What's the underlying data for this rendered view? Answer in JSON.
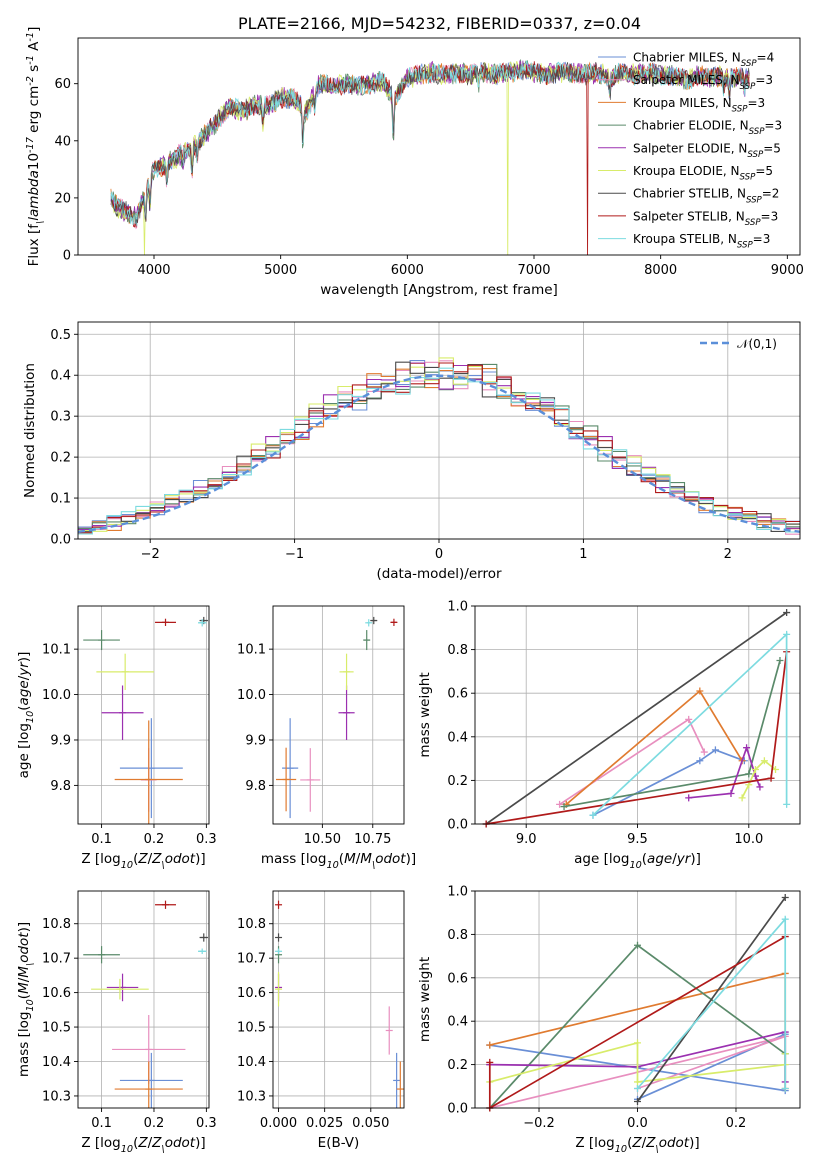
{
  "figure_title": "PLATE=2166, MJD=54232, FIBERID=0337, z=0.04",
  "series_names": [
    "Chabrier MILES, N$_{SSP}$=4",
    "Salpeter MILES, N$_{SSP}$=3",
    "Kroupa MILES, N$_{SSP}$=3",
    "Chabrier ELODIE, N$_{SSP}$=3",
    "Salpeter ELODIE, N$_{SSP}$=5",
    "Kroupa ELODIE, N$_{SSP}$=5",
    "Chabrier STELIB, N$_{SSP}$=2",
    "Salpeter STELIB, N$_{SSP}$=3",
    "Kroupa STELIB, N$_{SSP}$=3"
  ],
  "series_colors": [
    "#6a8fd6",
    "#e88fbf",
    "#e07b30",
    "#5a8a6a",
    "#9b30b0",
    "#d8ec6a",
    "#4a4a4a",
    "#b01a1a",
    "#7ddbe0"
  ],
  "chart_data": [
    {
      "type": "line",
      "title": "PLATE=2166, MJD=54232, FIBERID=0337, z=0.04",
      "xlabel": "wavelength [Angstrom, rest frame]",
      "ylabel": "Flux [f$_\\lambda$10$^{-17}$ erg cm$^{-2}$ s$^{-1}$ A$^{-1}$]",
      "xlim": [
        3400,
        9100
      ],
      "ylim": [
        0,
        76
      ],
      "xticks": [
        4000,
        5000,
        6000,
        7000,
        8000,
        9000
      ],
      "yticks": [
        0,
        20,
        40,
        60
      ],
      "grid": false,
      "legend_position": "right",
      "spectrum_anchors": [
        [
          3660,
          20
        ],
        [
          3700,
          17
        ],
        [
          3780,
          15
        ],
        [
          3860,
          13
        ],
        [
          3930,
          22
        ],
        [
          4000,
          30
        ],
        [
          4100,
          32
        ],
        [
          4200,
          35
        ],
        [
          4300,
          38
        ],
        [
          4400,
          42
        ],
        [
          4500,
          47
        ],
        [
          4600,
          52
        ],
        [
          4700,
          50
        ],
        [
          4800,
          53
        ],
        [
          4900,
          52
        ],
        [
          5000,
          55
        ],
        [
          5100,
          55
        ],
        [
          5200,
          50
        ],
        [
          5300,
          60
        ],
        [
          5400,
          59
        ],
        [
          5500,
          60
        ],
        [
          5600,
          59
        ],
        [
          5700,
          60
        ],
        [
          5800,
          61
        ],
        [
          5900,
          55
        ],
        [
          6000,
          62
        ],
        [
          6100,
          63
        ],
        [
          6200,
          64
        ],
        [
          6300,
          63
        ],
        [
          6400,
          64
        ],
        [
          6500,
          63
        ],
        [
          6600,
          64
        ],
        [
          6700,
          63
        ],
        [
          6800,
          64
        ],
        [
          6900,
          65
        ],
        [
          7000,
          64
        ],
        [
          7100,
          63
        ],
        [
          7200,
          64
        ],
        [
          7300,
          64
        ],
        [
          7400,
          63
        ],
        [
          7500,
          64
        ],
        [
          7600,
          62
        ],
        [
          7700,
          64
        ],
        [
          7800,
          63
        ],
        [
          7900,
          64
        ],
        [
          8000,
          63
        ],
        [
          8100,
          63
        ],
        [
          8200,
          61
        ],
        [
          8300,
          63
        ],
        [
          8400,
          62
        ],
        [
          8500,
          63
        ],
        [
          8600,
          62
        ],
        [
          8700,
          62
        ]
      ],
      "absorption_features": [
        [
          3933,
          10
        ],
        [
          3968,
          9
        ],
        [
          4101,
          5
        ],
        [
          4227,
          3
        ],
        [
          4300,
          8
        ],
        [
          4340,
          5
        ],
        [
          4861,
          6
        ],
        [
          5175,
          12
        ],
        [
          5270,
          5
        ],
        [
          5890,
          14
        ],
        [
          6563,
          4
        ],
        [
          7600,
          5
        ],
        [
          8498,
          4
        ],
        [
          8542,
          5
        ],
        [
          8662,
          4
        ]
      ],
      "dropouts": [
        {
          "series": 5,
          "wavelength": 3925
        },
        {
          "series": 5,
          "wavelength": 6790
        },
        {
          "series": 7,
          "wavelength": 7420
        }
      ]
    },
    {
      "type": "step",
      "xlabel": "(data-model)/error",
      "ylabel": "Normed distribution",
      "xlim": [
        -2.5,
        2.5
      ],
      "ylim": [
        0,
        0.53
      ],
      "xticks": [
        -2,
        -1,
        0,
        1,
        2
      ],
      "yticks": [
        0.0,
        0.1,
        0.2,
        0.3,
        0.4,
        0.5
      ],
      "grid": true,
      "legend_position": "upper right",
      "legend_label": "$\\mathcal{N}(0,1)$",
      "reference_curve": "normal density, mean 0, standard deviation 1",
      "bin_width": 0.1,
      "bin_start": -2.5
    },
    {
      "type": "scatter",
      "xlabel": "Z [log$_{10}$($Z/Z_\\odot$)]",
      "ylabel": "age  [log$_{10}$($age/yr$)]",
      "xlim": [
        0.055,
        0.305
      ],
      "ylim": [
        9.715,
        10.195
      ],
      "xticks": [
        0.1,
        0.2,
        0.3
      ],
      "yticks": [
        9.8,
        9.9,
        10.0,
        10.1
      ],
      "grid": true,
      "points": [
        {
          "x": 0.195,
          "y": 9.838,
          "xerr": 0.06,
          "yerr": 0.11
        },
        {
          "x": 0.19,
          "y": 9.812,
          "xerr": 0.015,
          "yerr": 0.07
        },
        {
          "x": 0.19,
          "y": 9.813,
          "xerr": 0.065,
          "yerr": 0.13
        },
        {
          "x": 0.1,
          "y": 10.12,
          "xerr": 0.035,
          "yerr": 0.022
        },
        {
          "x": 0.14,
          "y": 9.96,
          "xerr": 0.04,
          "yerr": 0.06
        },
        {
          "x": 0.145,
          "y": 10.05,
          "xerr": 0.055,
          "yerr": 0.04
        },
        {
          "x": 0.295,
          "y": 10.163,
          "xerr": 0.008,
          "yerr": 0.008
        },
        {
          "x": 0.222,
          "y": 10.159,
          "xerr": 0.02,
          "yerr": 0.008
        },
        {
          "x": 0.292,
          "y": 10.158,
          "xerr": 0.008,
          "yerr": 0.008
        }
      ]
    },
    {
      "type": "scatter",
      "xlabel": "mass [log$_{10}$($M/M_\\odot$)]",
      "ylabel": "",
      "xlim": [
        10.255,
        10.905
      ],
      "ylim": [
        9.715,
        10.195
      ],
      "xticks": [
        10.5,
        10.75
      ],
      "yticks": [
        9.8,
        9.9,
        10.0,
        10.1
      ],
      "grid": true,
      "points": [
        {
          "x": 10.34,
          "y": 9.838,
          "xerr": 0.04,
          "yerr": 0.11
        },
        {
          "x": 10.44,
          "y": 9.812,
          "xerr": 0.05,
          "yerr": 0.07
        },
        {
          "x": 10.32,
          "y": 9.813,
          "xerr": 0.05,
          "yerr": 0.07
        },
        {
          "x": 10.72,
          "y": 10.12,
          "xerr": 0.015,
          "yerr": 0.022
        },
        {
          "x": 10.62,
          "y": 9.96,
          "xerr": 0.04,
          "yerr": 0.06
        },
        {
          "x": 10.62,
          "y": 10.05,
          "xerr": 0.035,
          "yerr": 0.04
        },
        {
          "x": 10.755,
          "y": 10.163,
          "xerr": 0.015,
          "yerr": 0.008
        },
        {
          "x": 10.855,
          "y": 10.159,
          "xerr": 0.015,
          "yerr": 0.008
        },
        {
          "x": 10.73,
          "y": 10.158,
          "xerr": 0.008,
          "yerr": 0.008
        }
      ]
    },
    {
      "type": "line",
      "xlabel": "age  [log$_{10}$($age/yr$)]",
      "ylabel": "mass weight",
      "xlim": [
        8.77,
        10.23
      ],
      "ylim": [
        0,
        1
      ],
      "xticks": [
        9.0,
        9.5,
        10.0
      ],
      "yticks": [
        0.0,
        0.2,
        0.4,
        0.6,
        0.8,
        1.0
      ],
      "grid": true,
      "series": [
        {
          "x": [
            9.3,
            9.78,
            9.85,
            9.98
          ],
          "y": [
            0.04,
            0.29,
            0.34,
            0.29
          ]
        },
        {
          "x": [
            9.15,
            9.73,
            9.8
          ],
          "y": [
            0.09,
            0.48,
            0.33
          ]
        },
        {
          "x": [
            9.18,
            9.78,
            9.97
          ],
          "y": [
            0.09,
            0.61,
            0.29
          ]
        },
        {
          "x": [
            9.17,
            10.0,
            10.14
          ],
          "y": [
            0.08,
            0.23,
            0.75
          ]
        },
        {
          "x": [
            9.73,
            9.92,
            9.99,
            10.03,
            10.05
          ],
          "y": [
            0.12,
            0.14,
            0.35,
            0.22,
            0.17
          ]
        },
        {
          "x": [
            9.97,
            10.0,
            10.03,
            10.07,
            10.12
          ],
          "y": [
            0.12,
            0.18,
            0.25,
            0.29,
            0.25
          ]
        },
        {
          "x": [
            8.82,
            10.17
          ],
          "y": [
            0.0,
            0.97
          ]
        },
        {
          "x": [
            8.82,
            10.1,
            10.17
          ],
          "y": [
            0.0,
            0.21,
            0.79
          ]
        },
        {
          "x": [
            9.3,
            10.17,
            10.17
          ],
          "y": [
            0.04,
            0.87,
            0.09
          ]
        }
      ]
    },
    {
      "type": "scatter",
      "xlabel": "Z [log$_{10}$($Z/Z_\\odot$)]",
      "ylabel": "mass [log$_{10}$($M/M_\\odot$)]",
      "xlim": [
        0.055,
        0.305
      ],
      "ylim": [
        10.265,
        10.895
      ],
      "xticks": [
        0.1,
        0.2,
        0.3
      ],
      "yticks": [
        10.3,
        10.4,
        10.5,
        10.6,
        10.7,
        10.8
      ],
      "grid": true,
      "points": [
        {
          "x": 0.195,
          "y": 10.345,
          "xerr": 0.06,
          "yerr": 0.08
        },
        {
          "x": 0.19,
          "y": 10.435,
          "xerr": 0.07,
          "yerr": 0.1
        },
        {
          "x": 0.19,
          "y": 10.32,
          "xerr": 0.065,
          "yerr": 0.08
        },
        {
          "x": 0.1,
          "y": 10.71,
          "xerr": 0.035,
          "yerr": 0.025
        },
        {
          "x": 0.14,
          "y": 10.615,
          "xerr": 0.03,
          "yerr": 0.04
        },
        {
          "x": 0.135,
          "y": 10.61,
          "xerr": 0.055,
          "yerr": 0.03
        },
        {
          "x": 0.295,
          "y": 10.76,
          "xerr": 0.008,
          "yerr": 0.012
        },
        {
          "x": 0.222,
          "y": 10.855,
          "xerr": 0.02,
          "yerr": 0.012
        },
        {
          "x": 0.292,
          "y": 10.72,
          "xerr": 0.008,
          "yerr": 0.008
        }
      ]
    },
    {
      "type": "scatter",
      "xlabel": "E(B-V)",
      "ylabel": "",
      "xlim": [
        -0.003,
        0.068
      ],
      "ylim": [
        10.265,
        10.895
      ],
      "xticks": [
        0.0,
        0.025,
        0.05
      ],
      "xtick_labels": [
        "0.000",
        "0.025",
        "0.050"
      ],
      "yticks": [
        10.3,
        10.4,
        10.5,
        10.6,
        10.7,
        10.8
      ],
      "grid": true,
      "points": [
        {
          "x": 0.064,
          "y": 10.345,
          "yerr": 0.08
        },
        {
          "x": 0.06,
          "y": 10.49,
          "yerr": 0.07
        },
        {
          "x": 0.066,
          "y": 10.32,
          "yerr": 0.08
        },
        {
          "x": 0.0,
          "y": 10.71,
          "yerr": 0.025
        },
        {
          "x": 0.0,
          "y": 10.615,
          "yerr": 0.04
        },
        {
          "x": 0.0,
          "y": 10.61,
          "yerr": 0.05
        },
        {
          "x": 0.0,
          "y": 10.76,
          "yerr": 0.012
        },
        {
          "x": 0.0,
          "y": 10.855,
          "yerr": 0.012
        },
        {
          "x": 0.0,
          "y": 10.72,
          "yerr": 0.008
        }
      ]
    },
    {
      "type": "line",
      "xlabel": "Z [log$_{10}$($Z/Z_\\odot$)]",
      "ylabel": "mass weight",
      "xlim": [
        -0.33,
        0.33
      ],
      "ylim": [
        0,
        1
      ],
      "xticks": [
        -0.2,
        0.0,
        0.2
      ],
      "yticks": [
        0.0,
        0.2,
        0.4,
        0.6,
        0.8,
        1.0
      ],
      "grid": true,
      "series": [
        {
          "x": [
            -0.3,
            0.3,
            0.3,
            0.0
          ],
          "y": [
            0.29,
            0.08,
            0.34,
            0.04
          ]
        },
        {
          "x": [
            -0.3,
            0.3,
            0.0
          ],
          "y": [
            0.0,
            0.33,
            0.09
          ]
        },
        {
          "x": [
            -0.3,
            0.3,
            0.3
          ],
          "y": [
            0.29,
            0.62,
            0.09
          ]
        },
        {
          "x": [
            -0.3,
            0.0,
            0.3
          ],
          "y": [
            0.0,
            0.75,
            0.25
          ]
        },
        {
          "x": [
            -0.3,
            -0.3,
            0.0,
            0.3,
            0.3
          ],
          "y": [
            0.2,
            0.2,
            0.19,
            0.35,
            0.12
          ]
        },
        {
          "x": [
            -0.3,
            0.0,
            0.0,
            0.3,
            0.3
          ],
          "y": [
            0.12,
            0.3,
            0.12,
            0.2,
            0.25
          ]
        },
        {
          "x": [
            0.0,
            0.3
          ],
          "y": [
            0.03,
            0.97
          ]
        },
        {
          "x": [
            -0.3,
            -0.3,
            0.3
          ],
          "y": [
            0.21,
            0.0,
            0.79
          ]
        },
        {
          "x": [
            0.0,
            0.3,
            0.3
          ],
          "y": [
            0.09,
            0.87,
            0.09
          ]
        }
      ]
    }
  ]
}
